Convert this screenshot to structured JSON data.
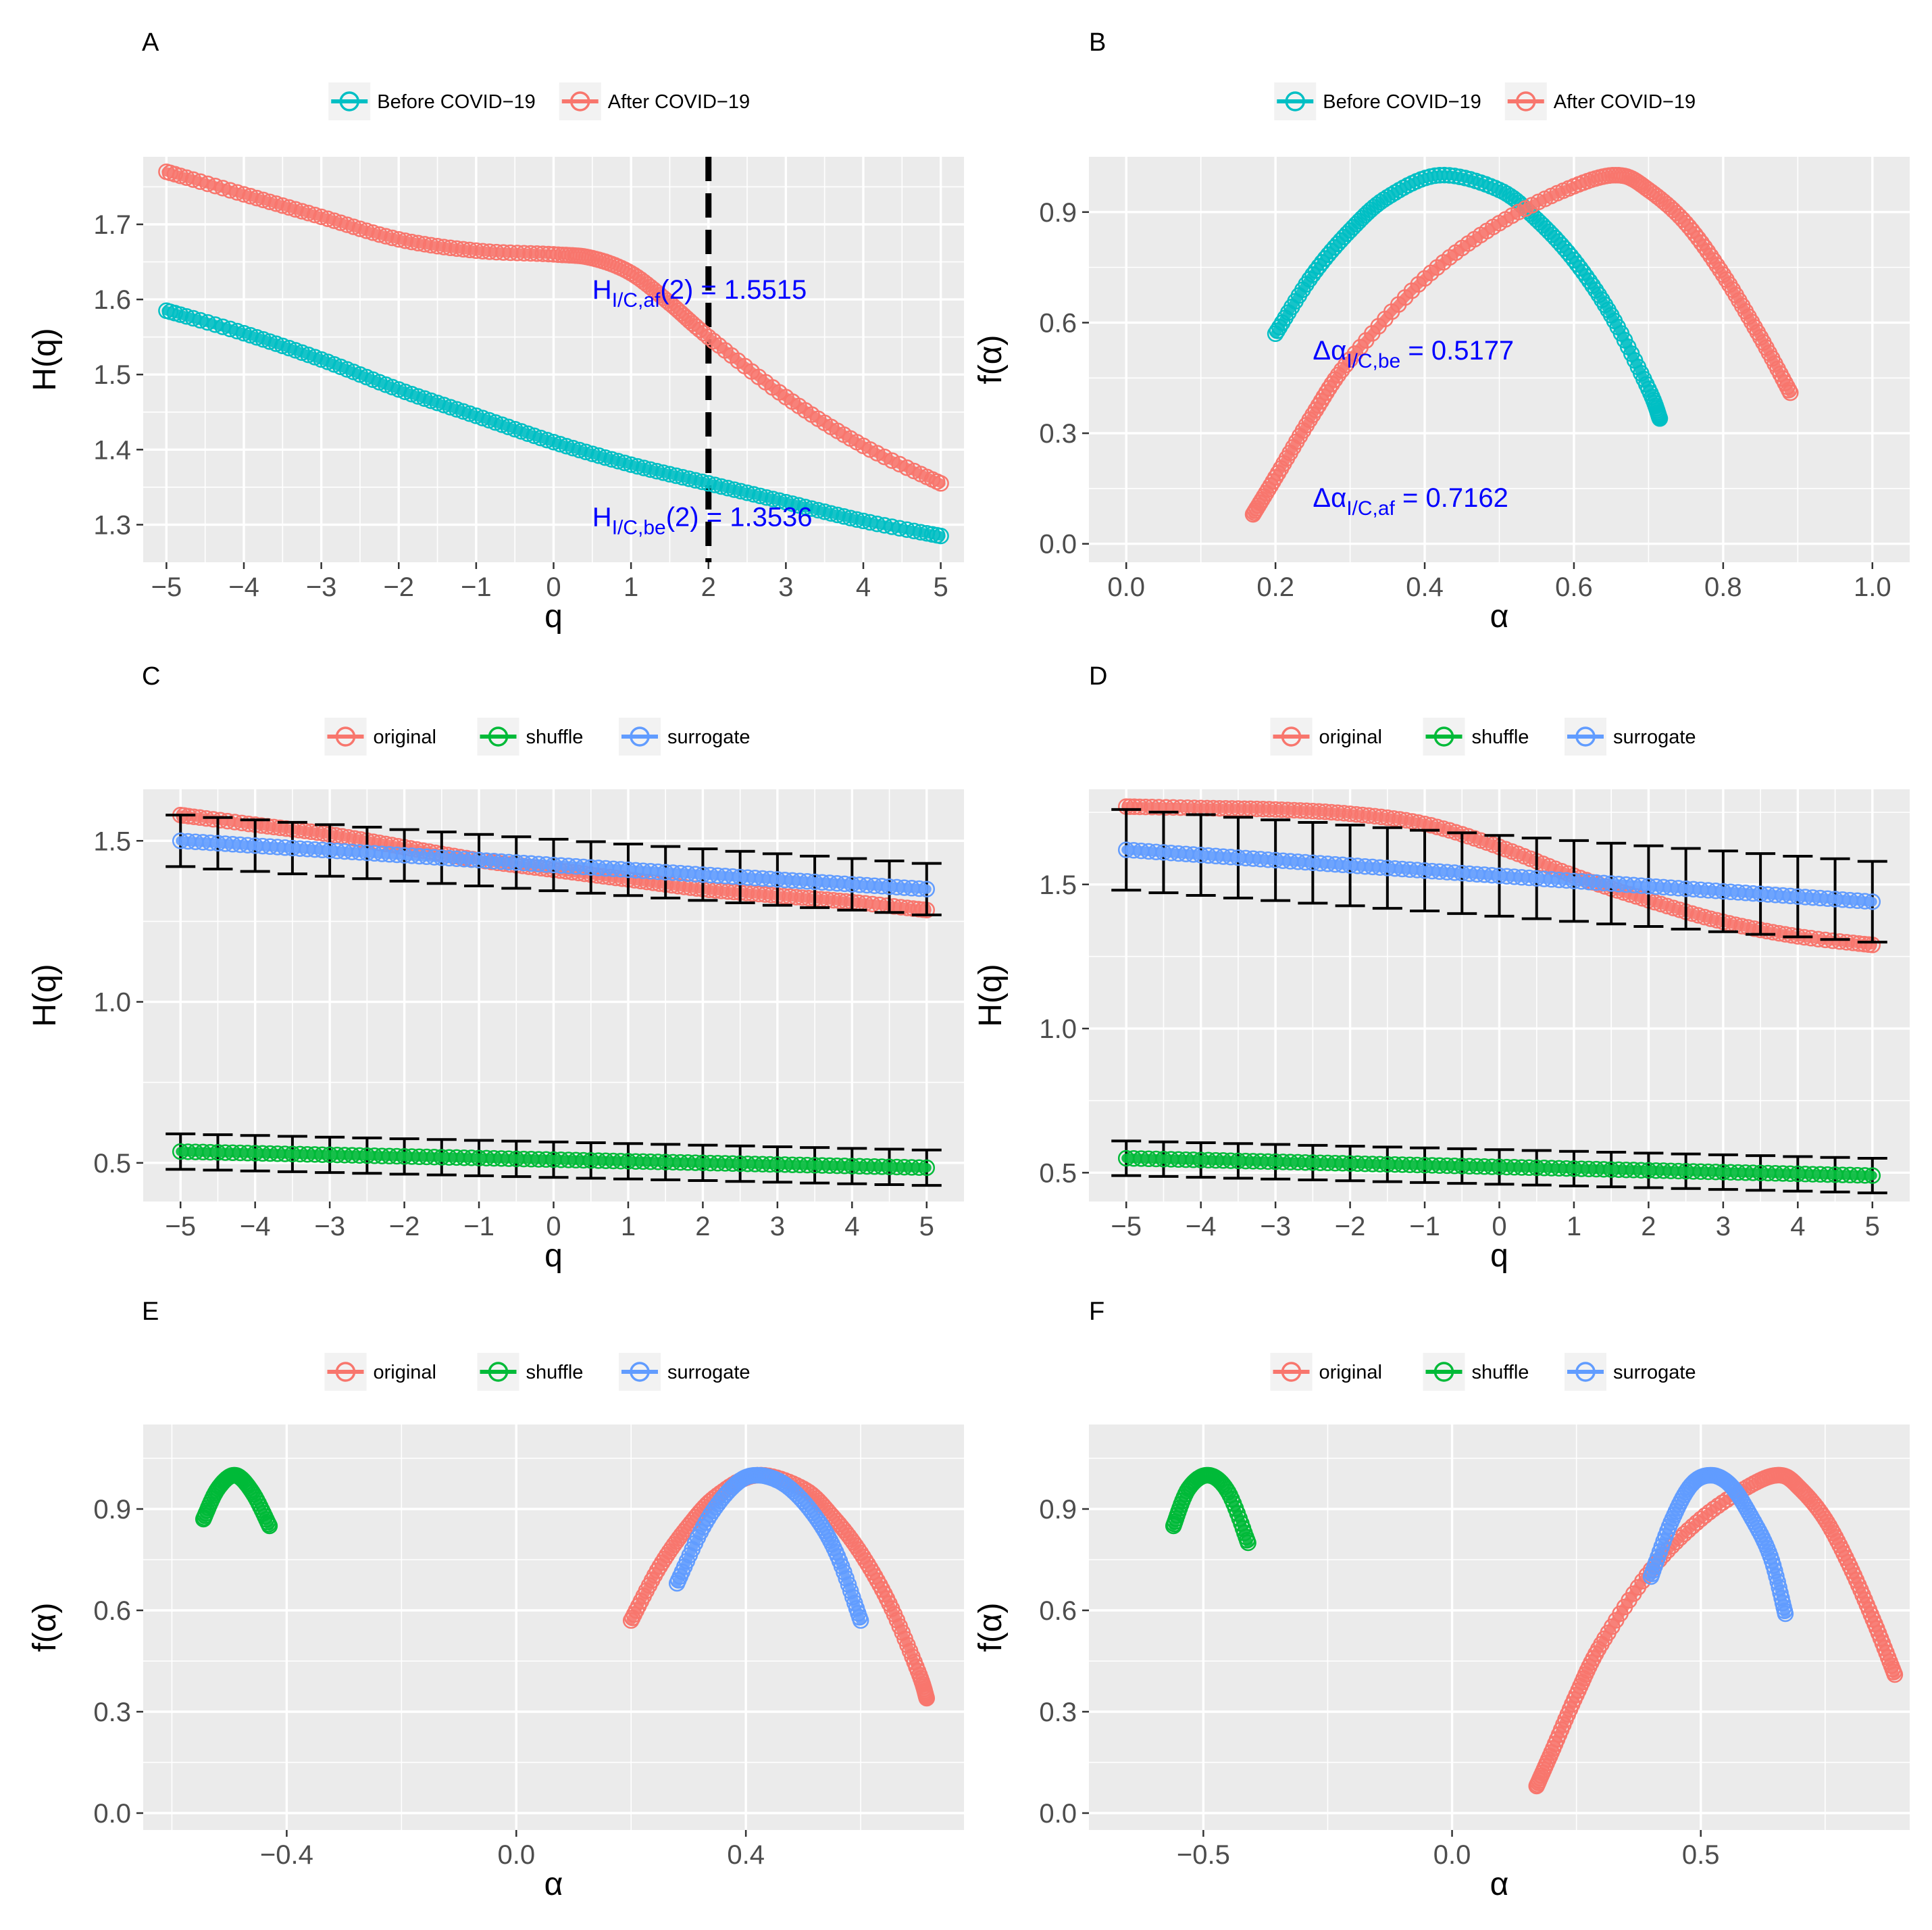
{
  "chart_data": [
    {
      "tag": "A",
      "type": "line",
      "xlabel": "q",
      "ylabel": "H(q)",
      "xlim": [
        -5.3,
        5.3
      ],
      "ylim": [
        1.25,
        1.79
      ],
      "xticks": [
        -5,
        -4,
        -3,
        -2,
        -1,
        0,
        1,
        2,
        3,
        4,
        5
      ],
      "xtick_labels": [
        "−5",
        "−4",
        "−3",
        "−2",
        "−1",
        "0",
        "1",
        "2",
        "3",
        "4",
        "5"
      ],
      "yticks": [
        1.3,
        1.4,
        1.5,
        1.6,
        1.7
      ],
      "ytick_labels": [
        "1.3",
        "1.4",
        "1.5",
        "1.6",
        "1.7"
      ],
      "legend": {
        "position": "top",
        "entries": [
          {
            "label": "Before COVID−19",
            "color": "#00BFC4"
          },
          {
            "label": "After COVID−19",
            "color": "#F8766D"
          }
        ]
      },
      "vline": {
        "x": 2,
        "style": "dashed"
      },
      "annotations": [
        {
          "base": "H",
          "sub": "I/C,af",
          "tail": "(2) = 1.5515",
          "x": 0.5,
          "y": 1.601
        },
        {
          "base": "H",
          "sub": "I/C,be",
          "tail": "(2) = 1.3536",
          "x": 0.5,
          "y": 1.298
        }
      ],
      "series": [
        {
          "name": "Before COVID−19",
          "color": "#00BFC4",
          "x": [
            -5,
            -4,
            -3,
            -2,
            -1,
            0,
            1,
            2,
            3,
            4,
            5
          ],
          "y": [
            1.585,
            1.555,
            1.52,
            1.48,
            1.445,
            1.41,
            1.38,
            1.355,
            1.33,
            1.305,
            1.285
          ]
        },
        {
          "name": "After COVID−19",
          "color": "#F8766D",
          "x": [
            -5,
            -4,
            -3,
            -2,
            -1,
            0,
            0.5,
            1,
            1.5,
            2,
            3,
            4,
            5
          ],
          "y": [
            1.77,
            1.74,
            1.71,
            1.68,
            1.665,
            1.66,
            1.655,
            1.635,
            1.595,
            1.55,
            1.47,
            1.405,
            1.355
          ]
        }
      ]
    },
    {
      "tag": "B",
      "type": "line",
      "xlabel": "α",
      "ylabel": "f(α)",
      "xlim": [
        -0.05,
        1.05
      ],
      "ylim": [
        -0.05,
        1.05
      ],
      "xticks": [
        0,
        0.2,
        0.4,
        0.6,
        0.8,
        1.0
      ],
      "xtick_labels": [
        "0.0",
        "0.2",
        "0.4",
        "0.6",
        "0.8",
        "1.0"
      ],
      "yticks": [
        0,
        0.3,
        0.6,
        0.9
      ],
      "ytick_labels": [
        "0.0",
        "0.3",
        "0.6",
        "0.9"
      ],
      "legend": {
        "position": "top",
        "entries": [
          {
            "label": "Before COVID−19",
            "color": "#00BFC4"
          },
          {
            "label": "After COVID−19",
            "color": "#F8766D"
          }
        ]
      },
      "annotations": [
        {
          "base": "Δα",
          "sub": "I/C,be",
          "tail": " = 0.5177",
          "x": 0.25,
          "y": 0.5
        },
        {
          "base": "Δα",
          "sub": "I/C,af",
          "tail": " = 0.7162",
          "x": 0.25,
          "y": 0.1
        }
      ],
      "series": [
        {
          "name": "Before COVID−19",
          "color": "#00BFC4",
          "x": [
            0.2,
            0.25,
            0.3,
            0.35,
            0.42,
            0.5,
            0.55,
            0.6,
            0.65,
            0.7,
            0.715
          ],
          "y": [
            0.57,
            0.73,
            0.85,
            0.94,
            1.0,
            0.96,
            0.88,
            0.77,
            0.62,
            0.42,
            0.34
          ]
        },
        {
          "name": "After COVID−19",
          "color": "#F8766D",
          "x": [
            0.17,
            0.2,
            0.25,
            0.3,
            0.4,
            0.5,
            0.6,
            0.66,
            0.7,
            0.75,
            0.8,
            0.85,
            0.89
          ],
          "y": [
            0.08,
            0.18,
            0.35,
            0.5,
            0.72,
            0.87,
            0.97,
            1.0,
            0.96,
            0.87,
            0.73,
            0.56,
            0.41
          ]
        }
      ]
    },
    {
      "tag": "C",
      "type": "line",
      "xlabel": "q",
      "ylabel": "H(q)",
      "xlim": [
        -5.5,
        5.5
      ],
      "ylim": [
        0.38,
        1.66
      ],
      "xticks": [
        -5,
        -4,
        -3,
        -2,
        -1,
        0,
        1,
        2,
        3,
        4,
        5
      ],
      "xtick_labels": [
        "−5",
        "−4",
        "−3",
        "−2",
        "−1",
        "0",
        "1",
        "2",
        "3",
        "4",
        "5"
      ],
      "yticks": [
        0.5,
        1.0,
        1.5
      ],
      "ytick_labels": [
        "0.5",
        "1.0",
        "1.5"
      ],
      "legend": {
        "position": "top",
        "entries": [
          {
            "label": "original",
            "color": "#F8766D"
          },
          {
            "label": "shuffle",
            "color": "#00BA38"
          },
          {
            "label": "surrogate",
            "color": "#619CFF"
          }
        ]
      },
      "series": [
        {
          "name": "original",
          "color": "#F8766D",
          "x": [
            -5,
            -4,
            -3,
            -2,
            -1,
            0,
            1,
            2,
            3,
            4,
            5
          ],
          "y": [
            1.58,
            1.55,
            1.52,
            1.48,
            1.44,
            1.41,
            1.38,
            1.35,
            1.33,
            1.31,
            1.285
          ]
        },
        {
          "name": "shuffle",
          "color": "#00BA38",
          "x": [
            -5,
            5
          ],
          "y": [
            0.535,
            0.485
          ],
          "err": 0.055
        },
        {
          "name": "surrogate",
          "color": "#619CFF",
          "x": [
            -5,
            5
          ],
          "y": [
            1.5,
            1.35
          ],
          "err": 0.08
        }
      ]
    },
    {
      "tag": "D",
      "type": "line",
      "xlabel": "q",
      "ylabel": "H(q)",
      "xlim": [
        -5.5,
        5.5
      ],
      "ylim": [
        0.4,
        1.83
      ],
      "xticks": [
        -5,
        -4,
        -3,
        -2,
        -1,
        0,
        1,
        2,
        3,
        4,
        5
      ],
      "xtick_labels": [
        "−5",
        "−4",
        "−3",
        "−2",
        "−1",
        "0",
        "1",
        "2",
        "3",
        "4",
        "5"
      ],
      "yticks": [
        0.5,
        1.0,
        1.5
      ],
      "ytick_labels": [
        "0.5",
        "1.0",
        "1.5"
      ],
      "legend": {
        "position": "top",
        "entries": [
          {
            "label": "original",
            "color": "#F8766D"
          },
          {
            "label": "shuffle",
            "color": "#00BA38"
          },
          {
            "label": "surrogate",
            "color": "#619CFF"
          }
        ]
      },
      "series": [
        {
          "name": "original",
          "color": "#F8766D",
          "x": [
            -5,
            -4,
            -3,
            -2,
            -1,
            0,
            1,
            2,
            3,
            4,
            5
          ],
          "y": [
            1.77,
            1.765,
            1.76,
            1.745,
            1.71,
            1.63,
            1.53,
            1.445,
            1.37,
            1.32,
            1.29
          ]
        },
        {
          "name": "shuffle",
          "color": "#00BA38",
          "x": [
            -5,
            5
          ],
          "y": [
            0.55,
            0.49
          ],
          "err": 0.06
        },
        {
          "name": "surrogate",
          "color": "#619CFF",
          "x": [
            -5,
            5
          ],
          "y": [
            1.62,
            1.44
          ],
          "err": 0.14
        }
      ]
    },
    {
      "tag": "E",
      "type": "scatter",
      "xlabel": "α",
      "ylabel": "f(α)",
      "xlim": [
        -0.65,
        0.78
      ],
      "ylim": [
        -0.05,
        1.15
      ],
      "xticks": [
        -0.4,
        0,
        0.4
      ],
      "xtick_labels": [
        "−0.4",
        "0.0",
        "0.4"
      ],
      "yticks": [
        0,
        0.3,
        0.6,
        0.9
      ],
      "ytick_labels": [
        "0.0",
        "0.3",
        "0.6",
        "0.9"
      ],
      "legend": {
        "position": "top",
        "entries": [
          {
            "label": "original",
            "color": "#F8766D"
          },
          {
            "label": "shuffle",
            "color": "#00BA38"
          },
          {
            "label": "surrogate",
            "color": "#619CFF"
          }
        ]
      },
      "series": [
        {
          "name": "original",
          "color": "#F8766D",
          "x": [
            0.2,
            0.25,
            0.3,
            0.35,
            0.42,
            0.5,
            0.55,
            0.6,
            0.65,
            0.7,
            0.715
          ],
          "y": [
            0.57,
            0.73,
            0.85,
            0.94,
            1.0,
            0.96,
            0.88,
            0.77,
            0.62,
            0.42,
            0.34
          ]
        },
        {
          "name": "shuffle",
          "color": "#00BA38",
          "x": [
            -0.545,
            -0.52,
            -0.49,
            -0.46,
            -0.43
          ],
          "y": [
            0.87,
            0.96,
            1.0,
            0.95,
            0.85
          ]
        },
        {
          "name": "surrogate",
          "color": "#619CFF",
          "x": [
            0.28,
            0.33,
            0.38,
            0.42,
            0.47,
            0.52,
            0.56,
            0.6
          ],
          "y": [
            0.68,
            0.86,
            0.97,
            1.0,
            0.97,
            0.88,
            0.76,
            0.57
          ]
        }
      ]
    },
    {
      "tag": "F",
      "type": "scatter",
      "xlabel": "α",
      "ylabel": "f(α)",
      "xlim": [
        -0.73,
        0.92
      ],
      "ylim": [
        -0.05,
        1.15
      ],
      "xticks": [
        -0.5,
        0,
        0.5
      ],
      "xtick_labels": [
        "−0.5",
        "0.0",
        "0.5"
      ],
      "yticks": [
        0,
        0.3,
        0.6,
        0.9
      ],
      "ytick_labels": [
        "0.0",
        "0.3",
        "0.6",
        "0.9"
      ],
      "legend": {
        "position": "top",
        "entries": [
          {
            "label": "original",
            "color": "#F8766D"
          },
          {
            "label": "shuffle",
            "color": "#00BA38"
          },
          {
            "label": "surrogate",
            "color": "#619CFF"
          }
        ]
      },
      "series": [
        {
          "name": "original",
          "color": "#F8766D",
          "x": [
            0.17,
            0.2,
            0.25,
            0.3,
            0.4,
            0.5,
            0.6,
            0.66,
            0.7,
            0.75,
            0.8,
            0.85,
            0.89
          ],
          "y": [
            0.08,
            0.18,
            0.35,
            0.5,
            0.72,
            0.87,
            0.97,
            1.0,
            0.96,
            0.87,
            0.73,
            0.56,
            0.41
          ]
        },
        {
          "name": "shuffle",
          "color": "#00BA38",
          "x": [
            -0.56,
            -0.53,
            -0.49,
            -0.45,
            -0.41
          ],
          "y": [
            0.85,
            0.96,
            1.0,
            0.95,
            0.8
          ]
        },
        {
          "name": "surrogate",
          "color": "#619CFF",
          "x": [
            0.4,
            0.44,
            0.48,
            0.52,
            0.56,
            0.6,
            0.64,
            0.67
          ],
          "y": [
            0.7,
            0.86,
            0.97,
            1.0,
            0.97,
            0.88,
            0.76,
            0.59
          ]
        }
      ]
    }
  ]
}
